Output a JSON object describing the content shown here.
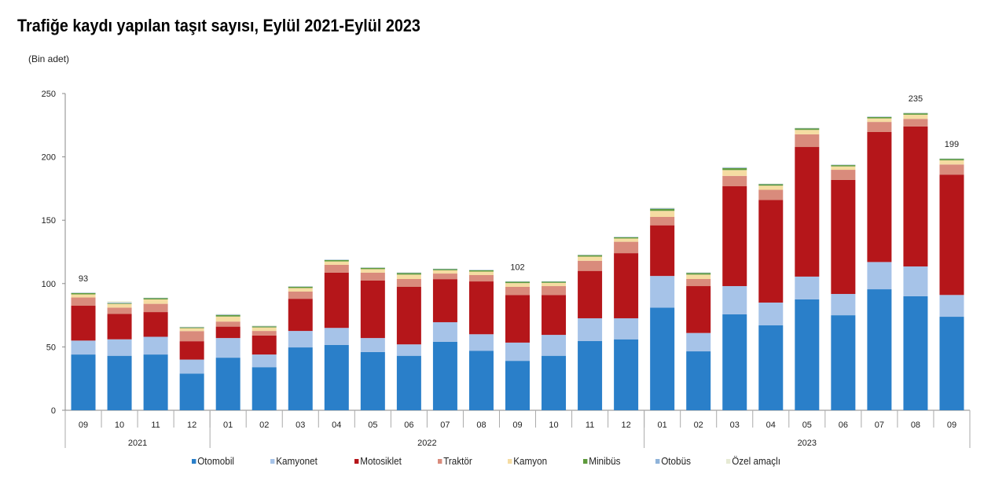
{
  "chart_data": {
    "type": "bar",
    "stacked": true,
    "title": "Trafiğe kaydı yapılan taşıt sayısı, Eylül 2021-Eylül 2023",
    "ylabel": "(Bin adet)",
    "ylim": [
      0,
      250
    ],
    "yticks": [
      0,
      50,
      100,
      150,
      200,
      250
    ],
    "grid": false,
    "legend_position": "bottom",
    "categories": [
      "09",
      "10",
      "11",
      "12",
      "01",
      "02",
      "03",
      "04",
      "05",
      "06",
      "07",
      "08",
      "09",
      "10",
      "11",
      "12",
      "01",
      "02",
      "03",
      "04",
      "05",
      "06",
      "07",
      "08",
      "09"
    ],
    "years": [
      {
        "label": "2021",
        "count": 4
      },
      {
        "label": "2022",
        "count": 12
      },
      {
        "label": "2023",
        "count": 9
      }
    ],
    "data_labels": [
      {
        "index": 0,
        "text": "93"
      },
      {
        "index": 12,
        "text": "102"
      },
      {
        "index": 23,
        "text": "235"
      },
      {
        "index": 24,
        "text": "199"
      }
    ],
    "series": [
      {
        "name": "Otomobil",
        "color": "#2a7fc9",
        "values": [
          44,
          43,
          44,
          29,
          41.5,
          34,
          49.6,
          51.5,
          46,
          43,
          54,
          47,
          39,
          43,
          54.6,
          56,
          81,
          46.5,
          75.7,
          67,
          87.5,
          75,
          95.5,
          90,
          73.8
        ]
      },
      {
        "name": "Kamyonet",
        "color": "#a6c3e8",
        "values": [
          11,
          13,
          14,
          11,
          15.5,
          10,
          13,
          13.5,
          11,
          9,
          15.5,
          13,
          14.4,
          16.5,
          18,
          16.6,
          25,
          14.5,
          22.3,
          18,
          18,
          16.8,
          21.5,
          23.5,
          17.2
        ]
      },
      {
        "name": "Motosiklet",
        "color": "#b5161a",
        "values": [
          27.5,
          20,
          19.5,
          14.5,
          9,
          15,
          25.4,
          43.6,
          45.4,
          45.4,
          34,
          41.7,
          37.6,
          31.5,
          37.4,
          51.4,
          40,
          37,
          78.8,
          81,
          102.3,
          90,
          102.6,
          110.5,
          95
        ]
      },
      {
        "name": "Traktör",
        "color": "#d98b7c",
        "values": [
          6.5,
          5,
          6.5,
          8,
          4,
          3.6,
          5.7,
          6.2,
          6.2,
          6.2,
          4.4,
          5,
          6.4,
          7,
          8,
          9,
          6.6,
          5.6,
          8.2,
          8,
          10,
          8,
          8,
          6,
          8
        ]
      },
      {
        "name": "Kamyon",
        "color": "#f5dca2",
        "values": [
          2.5,
          3,
          3.5,
          2.3,
          4,
          2.8,
          2.8,
          2.7,
          2.8,
          3.5,
          2.6,
          2.8,
          3,
          2.6,
          3.3,
          2.6,
          4.8,
          3.5,
          4.6,
          3.3,
          3.5,
          2.7,
          2.8,
          3.3,
          3.3
        ]
      },
      {
        "name": "Minibüs",
        "color": "#5e9a3c",
        "values": [
          1,
          0.5,
          1,
          0.6,
          1.2,
          0.8,
          1,
          1,
          1,
          1.2,
          0.9,
          1,
          1,
          0.9,
          1.1,
          0.9,
          1.6,
          1.2,
          1.5,
          1.1,
          1.2,
          1,
          1,
          1.1,
          1.1
        ]
      },
      {
        "name": "Otobüs",
        "color": "#8fb3d9",
        "values": [
          0.3,
          0.5,
          0.3,
          0.3,
          0.4,
          0.3,
          0.3,
          0.3,
          0.3,
          0.4,
          0.3,
          0.3,
          0.3,
          0.3,
          0.3,
          0.3,
          0.5,
          0.4,
          0.5,
          0.3,
          0.3,
          0.3,
          0.3,
          0.3,
          0.3
        ]
      },
      {
        "name": "Özel amaçlı",
        "color": "#e6ead4",
        "values": [
          0.2,
          1,
          0.2,
          0.3,
          0.4,
          0.5,
          0.2,
          0.2,
          0.3,
          0.3,
          0.2,
          0.2,
          0.3,
          0.2,
          0.3,
          0.2,
          0.5,
          0.3,
          0.4,
          0.3,
          0.3,
          0.2,
          0.2,
          0.3,
          0.3
        ]
      }
    ]
  }
}
